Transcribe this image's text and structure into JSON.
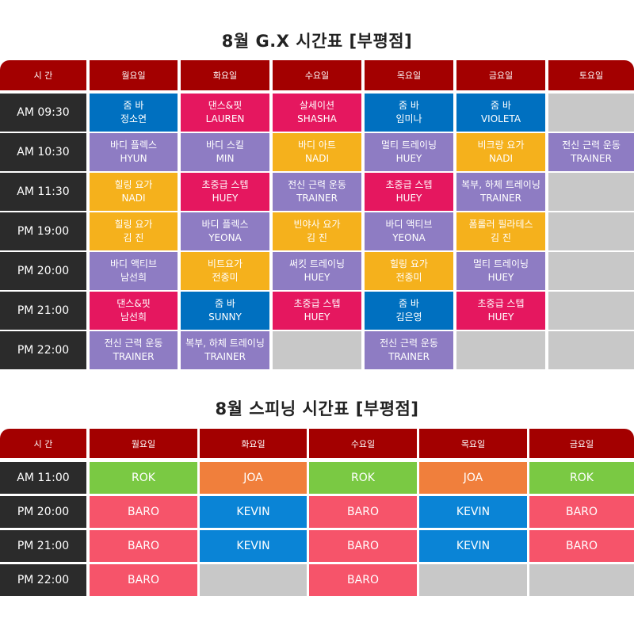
{
  "gx": {
    "title": "8월 G.X 시간표 [부평점]",
    "headers": [
      "시 간",
      "월요일",
      "화요일",
      "수요일",
      "목요일",
      "금요일",
      "토요일"
    ],
    "times": [
      "AM 09:30",
      "AM 10:30",
      "AM 11:30",
      "PM 19:00",
      "PM 20:00",
      "PM 21:00",
      "PM 22:00"
    ],
    "rows": [
      [
        {
          "name": "줌 바",
          "trainer": "정소연",
          "color": "#0070c0"
        },
        {
          "name": "댄스&핏",
          "trainer": "LAUREN",
          "color": "#e5175f"
        },
        {
          "name": "살세이션",
          "trainer": "SHASHA",
          "color": "#e5175f"
        },
        {
          "name": "줌 바",
          "trainer": "임미나",
          "color": "#0070c0"
        },
        {
          "name": "줌 바",
          "trainer": "VIOLETA",
          "color": "#0070c0"
        },
        null
      ],
      [
        {
          "name": "바디 플렉스",
          "trainer": "HYUN",
          "color": "#8e7cc3"
        },
        {
          "name": "바디 스킬",
          "trainer": "MIN",
          "color": "#8e7cc3"
        },
        {
          "name": "바디 아트",
          "trainer": "NADI",
          "color": "#f5b11c"
        },
        {
          "name": "멀티 트레이닝",
          "trainer": "HUEY",
          "color": "#8e7cc3"
        },
        {
          "name": "비크랑 요가",
          "trainer": "NADI",
          "color": "#f5b11c"
        },
        {
          "name": "전신 근력 운동",
          "trainer": "TRAINER",
          "color": "#8e7cc3"
        }
      ],
      [
        {
          "name": "힐링 요가",
          "trainer": "NADI",
          "color": "#f5b11c"
        },
        {
          "name": "초중급 스텝",
          "trainer": "HUEY",
          "color": "#e5175f"
        },
        {
          "name": "전신 근력 운동",
          "trainer": "TRAINER",
          "color": "#8e7cc3"
        },
        {
          "name": "초중급 스텝",
          "trainer": "HUEY",
          "color": "#e5175f"
        },
        {
          "name": "복부, 하체 트레이닝",
          "trainer": "TRAINER",
          "color": "#8e7cc3"
        },
        null
      ],
      [
        {
          "name": "힐링 요가",
          "trainer": "김 진",
          "color": "#f5b11c"
        },
        {
          "name": "바디 플렉스",
          "trainer": "YEONA",
          "color": "#8e7cc3"
        },
        {
          "name": "빈야사 요가",
          "trainer": "김 진",
          "color": "#f5b11c"
        },
        {
          "name": "바디 액티브",
          "trainer": "YEONA",
          "color": "#8e7cc3"
        },
        {
          "name": "폼롤러 필라테스",
          "trainer": "김 진",
          "color": "#f5b11c"
        },
        null
      ],
      [
        {
          "name": "바디 액티브",
          "trainer": "남선희",
          "color": "#8e7cc3"
        },
        {
          "name": "비트요가",
          "trainer": "전종미",
          "color": "#f5b11c"
        },
        {
          "name": "써킷 트레이닝",
          "trainer": "HUEY",
          "color": "#8e7cc3"
        },
        {
          "name": "힐링 요가",
          "trainer": "전종미",
          "color": "#f5b11c"
        },
        {
          "name": "멀티 트레이닝",
          "trainer": "HUEY",
          "color": "#8e7cc3"
        },
        null
      ],
      [
        {
          "name": "댄스&핏",
          "trainer": "남선희",
          "color": "#e5175f"
        },
        {
          "name": "줌 바",
          "trainer": "SUNNY",
          "color": "#0070c0"
        },
        {
          "name": "초중급 스텝",
          "trainer": "HUEY",
          "color": "#e5175f"
        },
        {
          "name": "줌 바",
          "trainer": "김은영",
          "color": "#0070c0"
        },
        {
          "name": "초중급 스텝",
          "trainer": "HUEY",
          "color": "#e5175f"
        },
        null
      ],
      [
        {
          "name": "전신 근력 운동",
          "trainer": "TRAINER",
          "color": "#8e7cc3"
        },
        {
          "name": "복부, 하체 트레이닝",
          "trainer": "TRAINER",
          "color": "#8e7cc3"
        },
        null,
        {
          "name": "전신 근력 운동",
          "trainer": "TRAINER",
          "color": "#8e7cc3"
        },
        null,
        null
      ]
    ]
  },
  "spinning": {
    "title": "8월 스피닝 시간표 [부평점]",
    "headers": [
      "시 간",
      "월요일",
      "화요일",
      "수요일",
      "목요일",
      "금요일"
    ],
    "times": [
      "AM 11:00",
      "PM 20:00",
      "PM 21:00",
      "PM 22:00"
    ],
    "rows": [
      [
        {
          "trainer": "ROK",
          "color": "#7ac943"
        },
        {
          "trainer": "JOA",
          "color": "#f07f3c"
        },
        {
          "trainer": "ROK",
          "color": "#7ac943"
        },
        {
          "trainer": "JOA",
          "color": "#f07f3c"
        },
        {
          "trainer": "ROK",
          "color": "#7ac943"
        }
      ],
      [
        {
          "trainer": "BARO",
          "color": "#f6546a"
        },
        {
          "trainer": "KEVIN",
          "color": "#0a84d6"
        },
        {
          "trainer": "BARO",
          "color": "#f6546a"
        },
        {
          "trainer": "KEVIN",
          "color": "#0a84d6"
        },
        {
          "trainer": "BARO",
          "color": "#f6546a"
        }
      ],
      [
        {
          "trainer": "BARO",
          "color": "#f6546a"
        },
        {
          "trainer": "KEVIN",
          "color": "#0a84d6"
        },
        {
          "trainer": "BARO",
          "color": "#f6546a"
        },
        {
          "trainer": "KEVIN",
          "color": "#0a84d6"
        },
        {
          "trainer": "BARO",
          "color": "#f6546a"
        }
      ],
      [
        {
          "trainer": "BARO",
          "color": "#f6546a"
        },
        null,
        {
          "trainer": "BARO",
          "color": "#f6546a"
        },
        null,
        null
      ]
    ]
  }
}
